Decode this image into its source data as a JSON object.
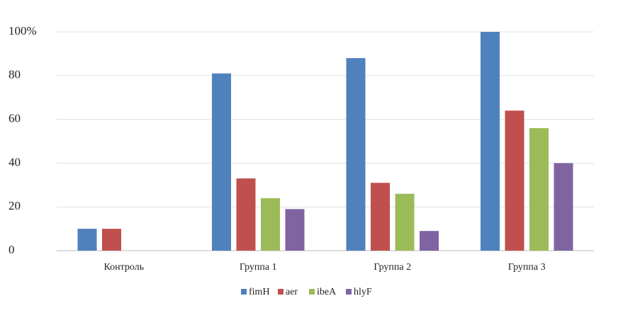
{
  "chart_data": {
    "type": "bar",
    "categories": [
      "Контроль",
      "Группа 1",
      "Группа 2",
      "Группа 3"
    ],
    "series": [
      {
        "name": "fimH",
        "color": "#4f81bd",
        "values": [
          10,
          81,
          88,
          100
        ]
      },
      {
        "name": "aer",
        "color": "#c0504d",
        "values": [
          10,
          33,
          31,
          64
        ]
      },
      {
        "name": "ibeA",
        "color": "#9bbb59",
        "values": [
          0,
          24,
          26,
          56
        ]
      },
      {
        "name": "hlyF",
        "color": "#8064a2",
        "values": [
          0,
          19,
          9,
          40
        ]
      }
    ],
    "ylim": [
      0,
      100
    ],
    "yticks": [
      0,
      20,
      40,
      60,
      80,
      {
        "value": 100,
        "label": "100%"
      }
    ],
    "grid": true,
    "legend": "bottom"
  }
}
